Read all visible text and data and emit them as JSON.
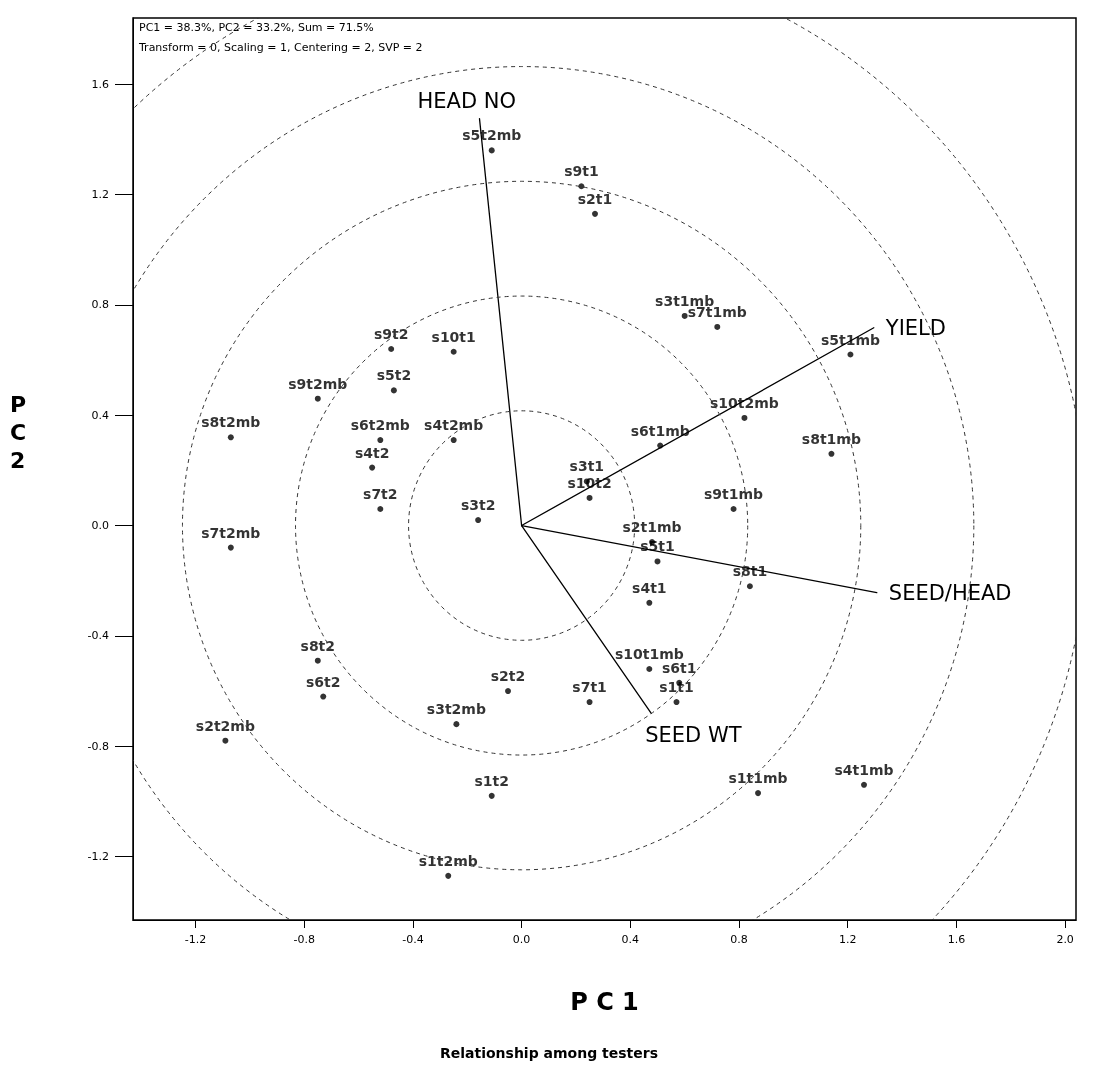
{
  "chart_data": {
    "type": "scatter",
    "xlabel": "P C 1",
    "ylabel": "P C 2",
    "annotations": [
      "PC1 = 38.3%, PC2 = 33.2%, Sum = 71.5%",
      "Transform = 0, Scaling = 1, Centering = 2, SVP = 2",
      "Relationship among testers"
    ],
    "xlim": [
      -1.43,
      2.04
    ],
    "ylim": [
      -1.43,
      1.84
    ],
    "xticks": [
      {
        "value": -1.2,
        "label": "-1.2"
      },
      {
        "value": -0.8,
        "label": "-0.8"
      },
      {
        "value": -0.4,
        "label": "-0.4"
      },
      {
        "value": 0,
        "label": "0.0"
      },
      {
        "value": 0.4,
        "label": "0.4"
      },
      {
        "value": 0.8,
        "label": "0.8"
      },
      {
        "value": 1.2,
        "label": "1.2"
      },
      {
        "value": 1.6,
        "label": "1.6"
      },
      {
        "value": 2,
        "label": "2.0"
      }
    ],
    "yticks": [
      {
        "value": -1.2,
        "label": "-1.2"
      },
      {
        "value": -0.8,
        "label": "-0.8"
      },
      {
        "value": -0.4,
        "label": "-0.4"
      },
      {
        "value": 0,
        "label": "0.0"
      },
      {
        "value": 0.4,
        "label": "0.4"
      },
      {
        "value": 0.8,
        "label": "0.8"
      },
      {
        "value": 1.2,
        "label": "1.2"
      },
      {
        "value": 1.6,
        "label": "1.6"
      }
    ],
    "series": [
      {
        "type": "line",
        "line_style": "solid",
        "name": "HEAD NO",
        "color": "#000000",
        "x": [
          0,
          -0.155
        ],
        "values": [
          0,
          1.475
        ]
      },
      {
        "type": "line",
        "line_style": "solid",
        "name": "YIELD",
        "color": "#000000",
        "x": [
          0,
          1.296
        ],
        "values": [
          0,
          0.717
        ]
      },
      {
        "type": "line",
        "line_style": "solid",
        "name": "SEED/HEAD",
        "color": "#000000",
        "x": [
          0,
          1.307
        ],
        "values": [
          0,
          -0.243
        ]
      },
      {
        "type": "line",
        "line_style": "solid",
        "name": "SEED WT",
        "color": "#000000",
        "x": [
          0,
          0.477
        ],
        "values": [
          0,
          -0.681
        ]
      },
      {
        "marker": "circle",
        "color": "#000000",
        "x": [
          -0.11,
          0.22,
          0.27,
          0.6,
          0.72,
          1.21,
          -0.48,
          -0.25,
          -0.47,
          -0.75,
          0.82,
          -1.07,
          -0.52,
          -0.25,
          0.51,
          1.14,
          -0.55,
          0.24,
          0.25,
          -0.52,
          0.78,
          -0.16,
          -1.07,
          0.48,
          0.5,
          0.84,
          0.47,
          -0.75,
          0.47,
          0.58,
          -0.73,
          -0.05,
          0.25,
          0.57,
          -0.24,
          -1.09,
          0.87,
          1.26,
          -0.11,
          -0.27
        ],
        "values": [
          1.36,
          1.23,
          1.13,
          0.76,
          0.72,
          0.62,
          0.64,
          0.63,
          0.49,
          0.46,
          0.39,
          0.32,
          0.31,
          0.31,
          0.29,
          0.26,
          0.21,
          0.16,
          0.1,
          0.06,
          0.06,
          0.02,
          -0.08,
          -0.06,
          -0.13,
          -0.22,
          -0.28,
          -0.49,
          -0.52,
          -0.57,
          -0.62,
          -0.6,
          -0.64,
          -0.64,
          -0.72,
          -0.78,
          -0.97,
          -0.94,
          -0.98,
          -1.27
        ],
        "value_labels": [
          "s5t2mb",
          "s9t1",
          "s2t1",
          "s3t1mb",
          "s7t1mb",
          "s5t1mb",
          "s9t2",
          "s10t1",
          "s5t2",
          "s9t2mb",
          "s10t2mb",
          "s8t2mb",
          "s6t2mb",
          "s4t2mb",
          "s6t1mb",
          "s8t1mb",
          "s4t2",
          "s3t1",
          "s10t2",
          "s7t2",
          "s9t1mb",
          "s3t2",
          "s7t2mb",
          "s2t1mb",
          "s5t1",
          "s8t1",
          "s4t1",
          "s8t2",
          "s10t1mb",
          "s6t1",
          "s6t2",
          "s2t2",
          "s7t1",
          "s1t1",
          "s3t2mb",
          "s2t2mb",
          "s1t1mb",
          "s4t1mb",
          "s1t2",
          "s1t2mb"
        ]
      }
    ]
  }
}
